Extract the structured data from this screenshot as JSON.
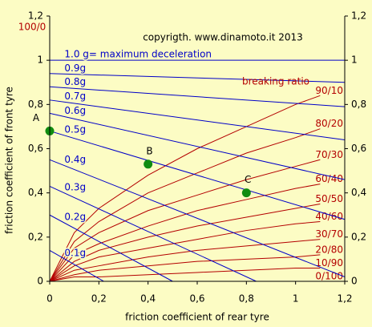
{
  "chart_data": {
    "type": "line",
    "title": "copyrigth. www.dinamoto.it  2013",
    "x_label": "friction coefficient of rear tyre",
    "y_label": "friction coefficient of front tyre",
    "ratio_title": "breaking ratio",
    "xlim": [
      0,
      1.2
    ],
    "ylim": [
      0,
      1.2
    ],
    "xticks": [
      0,
      {
        "value": 0.2,
        "label": "0,2"
      },
      {
        "value": 0.4,
        "label": "0,4"
      },
      {
        "value": 0.6,
        "label": "0,6"
      },
      {
        "value": 0.8,
        "label": "0,8"
      },
      1,
      {
        "value": 1.2,
        "label": "1,2"
      }
    ],
    "yticks": [
      0,
      {
        "value": 0.2,
        "label": "0,2"
      },
      {
        "value": 0.4,
        "label": "0,4"
      },
      {
        "value": 0.6,
        "label": "0,6"
      },
      {
        "value": 0.8,
        "label": "0,8"
      },
      1,
      {
        "value": 1.2,
        "label": "1,2"
      }
    ],
    "decel_color": "#0000c8",
    "decel_lines": [
      {
        "name": "1.0 g= maximum deceleration",
        "x": [
          0,
          1.2
        ],
        "values": [
          1.0,
          1.0
        ]
      },
      {
        "name": "0.9g",
        "x": [
          0,
          1.2
        ],
        "values": [
          0.94,
          0.9
        ]
      },
      {
        "name": "0.8g",
        "x": [
          0,
          1.2
        ],
        "values": [
          0.88,
          0.79
        ]
      },
      {
        "name": "0.7g",
        "x": [
          0,
          1.2
        ],
        "values": [
          0.82,
          0.64
        ]
      },
      {
        "name": "0.6g",
        "x": [
          0,
          1.2
        ],
        "values": [
          0.76,
          0.46
        ]
      },
      {
        "name": "0.5g",
        "x": [
          0,
          1.2
        ],
        "values": [
          0.68,
          0.28
        ]
      },
      {
        "name": "0.4g",
        "x": [
          0,
          1.2
        ],
        "values": [
          0.55,
          0.02
        ]
      },
      {
        "name": "0.3g",
        "x": [
          0,
          0.84
        ],
        "values": [
          0.43,
          0
        ]
      },
      {
        "name": "0.2g",
        "x": [
          0,
          0.5
        ],
        "values": [
          0.3,
          0
        ]
      },
      {
        "name": "0.1g",
        "x": [
          0,
          0.22
        ],
        "values": [
          0.14,
          0
        ]
      }
    ],
    "ratio_color": "#b40000",
    "series": [
      {
        "name": "100/0",
        "x": [
          0,
          0
        ],
        "values": [
          0,
          1.12
        ]
      },
      {
        "name": "90/10",
        "x": [
          0,
          0.1,
          0.2,
          0.4,
          0.6,
          0.8,
          1.0,
          1.1
        ],
        "values": [
          0,
          0.22,
          0.33,
          0.48,
          0.6,
          0.7,
          0.8,
          0.84
        ]
      },
      {
        "name": "80/20",
        "x": [
          0,
          0.1,
          0.2,
          0.4,
          0.6,
          0.8,
          1.0,
          1.1
        ],
        "values": [
          0,
          0.18,
          0.27,
          0.4,
          0.49,
          0.58,
          0.65,
          0.69
        ]
      },
      {
        "name": "70/30",
        "x": [
          0,
          0.1,
          0.2,
          0.4,
          0.6,
          0.8,
          1.0,
          1.1
        ],
        "values": [
          0,
          0.15,
          0.22,
          0.32,
          0.39,
          0.46,
          0.52,
          0.55
        ]
      },
      {
        "name": "60/40",
        "x": [
          0,
          0.1,
          0.2,
          0.4,
          0.6,
          0.8,
          1.0,
          1.1
        ],
        "values": [
          0,
          0.12,
          0.17,
          0.25,
          0.32,
          0.37,
          0.42,
          0.44
        ]
      },
      {
        "name": "50/50",
        "x": [
          0,
          0.1,
          0.2,
          0.4,
          0.6,
          0.8,
          1.0,
          1.1
        ],
        "values": [
          0,
          0.09,
          0.14,
          0.2,
          0.25,
          0.29,
          0.33,
          0.35
        ]
      },
      {
        "name": "40/60",
        "x": [
          0,
          0.1,
          0.2,
          0.4,
          0.6,
          0.8,
          1.0,
          1.1
        ],
        "values": [
          0,
          0.07,
          0.11,
          0.15,
          0.19,
          0.23,
          0.26,
          0.27
        ]
      },
      {
        "name": "30/70",
        "x": [
          0,
          0.1,
          0.2,
          0.4,
          0.6,
          0.8,
          1.0,
          1.1
        ],
        "values": [
          0,
          0.05,
          0.07,
          0.11,
          0.14,
          0.16,
          0.18,
          0.19
        ]
      },
      {
        "name": "20/80",
        "x": [
          0,
          0.1,
          0.2,
          0.4,
          0.6,
          0.8,
          1.0,
          1.1
        ],
        "values": [
          0,
          0.03,
          0.05,
          0.07,
          0.09,
          0.1,
          0.11,
          0.12
        ]
      },
      {
        "name": "10/90",
        "x": [
          0,
          0.1,
          0.2,
          0.4,
          0.6,
          0.8,
          1.0,
          1.1
        ],
        "values": [
          0,
          0.02,
          0.02,
          0.03,
          0.04,
          0.05,
          0.06,
          0.06
        ]
      },
      {
        "name": "0/100",
        "x": [
          0,
          1.1
        ],
        "values": [
          0,
          0
        ]
      }
    ],
    "point_color": "#108c10",
    "points": [
      {
        "label": "A",
        "x": 0,
        "y": 0.68
      },
      {
        "label": "B",
        "x": 0.4,
        "y": 0.53
      },
      {
        "label": "C",
        "x": 0.8,
        "y": 0.4
      }
    ]
  }
}
